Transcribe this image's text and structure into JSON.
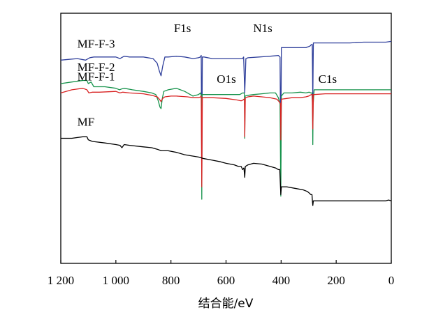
{
  "chart_data": {
    "type": "line",
    "title": "",
    "xlabel": "结合能/eV",
    "ylabel": "",
    "xlim": [
      1200,
      0
    ],
    "x_reversed": true,
    "x_ticks": [
      1200,
      1000,
      800,
      600,
      400,
      200,
      0
    ],
    "x_tick_labels": [
      "1 200",
      "1 000",
      "800",
      "600",
      "400",
      "200",
      "0"
    ],
    "y_ticks_shown": false,
    "grid": false,
    "peak_labels": [
      {
        "text": "F1s",
        "x": 688
      },
      {
        "text": "N1s",
        "x": 400
      },
      {
        "text": "O1s",
        "x": 532
      },
      {
        "text": "C1s",
        "x": 285
      }
    ],
    "series": [
      {
        "name": "MF-F-3",
        "color": "#2f3f9b",
        "points": [
          [
            1200,
            85
          ],
          [
            1170,
            85.5
          ],
          [
            1140,
            86
          ],
          [
            1110,
            85
          ],
          [
            1095,
            86.5
          ],
          [
            1080,
            87
          ],
          [
            1050,
            87
          ],
          [
            1000,
            87
          ],
          [
            985,
            86
          ],
          [
            970,
            87.5
          ],
          [
            950,
            87
          ],
          [
            900,
            87
          ],
          [
            865,
            86
          ],
          [
            850,
            83
          ],
          [
            842,
            78
          ],
          [
            836,
            75
          ],
          [
            830,
            81
          ],
          [
            822,
            87
          ],
          [
            810,
            87
          ],
          [
            780,
            87.5
          ],
          [
            750,
            87
          ],
          [
            720,
            86
          ],
          [
            700,
            86.5
          ],
          [
            693,
            87
          ],
          [
            690,
            88
          ],
          [
            688,
            15
          ],
          [
            686,
            87
          ],
          [
            680,
            87
          ],
          [
            650,
            86
          ],
          [
            600,
            86
          ],
          [
            560,
            86
          ],
          [
            540,
            86
          ],
          [
            536,
            87
          ],
          [
            532,
            64
          ],
          [
            528,
            86
          ],
          [
            520,
            86.5
          ],
          [
            480,
            87
          ],
          [
            440,
            87.5
          ],
          [
            410,
            88
          ],
          [
            404,
            87
          ],
          [
            401,
            19
          ],
          [
            399,
            93
          ],
          [
            380,
            93
          ],
          [
            340,
            93
          ],
          [
            310,
            93
          ],
          [
            295,
            94
          ],
          [
            290,
            95
          ],
          [
            287,
            95
          ],
          [
            285,
            60
          ],
          [
            283,
            96
          ],
          [
            280,
            96
          ],
          [
            240,
            96
          ],
          [
            200,
            96
          ],
          [
            150,
            96
          ],
          [
            100,
            96.5
          ],
          [
            50,
            96.5
          ],
          [
            20,
            96.5
          ],
          [
            0,
            97
          ]
        ]
      },
      {
        "name": "MF-F-2",
        "color": "#15924a",
        "points": [
          [
            1200,
            86
          ],
          [
            1160,
            87
          ],
          [
            1120,
            88
          ],
          [
            1105,
            88
          ],
          [
            1100,
            86
          ],
          [
            1090,
            87
          ],
          [
            1080,
            84
          ],
          [
            1040,
            84
          ],
          [
            1000,
            83
          ],
          [
            987,
            82
          ],
          [
            980,
            82.5
          ],
          [
            970,
            83
          ],
          [
            940,
            82
          ],
          [
            900,
            81
          ],
          [
            870,
            80
          ],
          [
            855,
            79
          ],
          [
            846,
            75
          ],
          [
            840,
            71
          ],
          [
            836,
            70
          ],
          [
            832,
            76
          ],
          [
            826,
            81
          ],
          [
            810,
            82
          ],
          [
            780,
            83
          ],
          [
            750,
            81
          ],
          [
            720,
            78
          ],
          [
            700,
            79
          ],
          [
            692,
            80
          ],
          [
            689,
            77
          ],
          [
            688,
            12
          ],
          [
            687,
            79
          ],
          [
            680,
            79
          ],
          [
            650,
            79
          ],
          [
            620,
            79
          ],
          [
            600,
            79
          ],
          [
            570,
            79
          ],
          [
            550,
            79
          ],
          [
            540,
            80
          ],
          [
            535,
            80
          ],
          [
            533,
            79
          ],
          [
            532,
            51
          ],
          [
            531,
            78
          ],
          [
            520,
            78.5
          ],
          [
            500,
            79
          ],
          [
            470,
            79.5
          ],
          [
            440,
            80
          ],
          [
            420,
            80
          ],
          [
            410,
            77
          ],
          [
            404,
            73
          ],
          [
            401,
            14
          ],
          [
            399,
            78
          ],
          [
            390,
            80
          ],
          [
            360,
            80
          ],
          [
            330,
            80.5
          ],
          [
            310,
            80
          ],
          [
            298,
            80.5
          ],
          [
            292,
            80
          ],
          [
            288,
            80
          ],
          [
            286,
            73
          ],
          [
            285,
            47
          ],
          [
            284,
            72
          ],
          [
            280,
            82
          ],
          [
            260,
            82
          ],
          [
            220,
            82
          ],
          [
            180,
            82
          ],
          [
            120,
            82
          ],
          [
            60,
            82
          ],
          [
            30,
            82
          ],
          [
            0,
            82
          ]
        ]
      },
      {
        "name": "MF-F-1",
        "color": "#d82222",
        "points": [
          [
            1200,
            90
          ],
          [
            1160,
            92
          ],
          [
            1120,
            93
          ],
          [
            1105,
            92
          ],
          [
            1098,
            90
          ],
          [
            1085,
            90.5
          ],
          [
            1060,
            90.5
          ],
          [
            1000,
            91
          ],
          [
            985,
            90
          ],
          [
            975,
            90.5
          ],
          [
            950,
            90
          ],
          [
            900,
            89.5
          ],
          [
            870,
            88.5
          ],
          [
            850,
            87.5
          ],
          [
            842,
            86
          ],
          [
            836,
            84.5
          ],
          [
            830,
            86.5
          ],
          [
            822,
            87.5
          ],
          [
            800,
            88
          ],
          [
            780,
            88
          ],
          [
            740,
            87.5
          ],
          [
            720,
            87
          ],
          [
            700,
            87
          ],
          [
            692,
            87.5
          ],
          [
            690,
            88
          ],
          [
            688,
            30
          ],
          [
            686,
            87
          ],
          [
            680,
            87
          ],
          [
            650,
            87
          ],
          [
            600,
            86.5
          ],
          [
            560,
            85.5
          ],
          [
            545,
            85
          ],
          [
            538,
            85.5
          ],
          [
            535,
            86
          ],
          [
            533,
            86
          ],
          [
            532,
            62
          ],
          [
            530,
            87
          ],
          [
            520,
            87.5
          ],
          [
            500,
            88
          ],
          [
            470,
            87.5
          ],
          [
            440,
            87
          ],
          [
            415,
            86
          ],
          [
            405,
            84
          ],
          [
            402,
            83
          ],
          [
            401,
            60
          ],
          [
            399,
            86
          ],
          [
            380,
            86.5
          ],
          [
            360,
            87
          ],
          [
            330,
            87
          ],
          [
            310,
            87.5
          ],
          [
            300,
            88
          ],
          [
            295,
            88.5
          ],
          [
            290,
            89
          ],
          [
            287,
            89
          ],
          [
            285,
            67
          ],
          [
            283,
            89
          ],
          [
            280,
            89
          ],
          [
            240,
            89.5
          ],
          [
            200,
            89.5
          ],
          [
            150,
            89.5
          ],
          [
            100,
            89.5
          ],
          [
            50,
            89.5
          ],
          [
            0,
            89.5
          ]
        ]
      },
      {
        "name": "MF",
        "color": "#000000",
        "points": [
          [
            1200,
            80
          ],
          [
            1160,
            80
          ],
          [
            1120,
            81
          ],
          [
            1105,
            81
          ],
          [
            1100,
            79
          ],
          [
            1085,
            78
          ],
          [
            1040,
            77
          ],
          [
            1000,
            76
          ],
          [
            985,
            75.5
          ],
          [
            978,
            74
          ],
          [
            970,
            76
          ],
          [
            950,
            75.5
          ],
          [
            900,
            74.5
          ],
          [
            870,
            74
          ],
          [
            850,
            73
          ],
          [
            835,
            72
          ],
          [
            810,
            72
          ],
          [
            780,
            71
          ],
          [
            750,
            69.5
          ],
          [
            700,
            68
          ],
          [
            680,
            67
          ],
          [
            650,
            66
          ],
          [
            620,
            65
          ],
          [
            600,
            64
          ],
          [
            570,
            63
          ],
          [
            555,
            62
          ],
          [
            545,
            62
          ],
          [
            540,
            60
          ],
          [
            535,
            61
          ],
          [
            532,
            55
          ],
          [
            530,
            62
          ],
          [
            520,
            63
          ],
          [
            500,
            64
          ],
          [
            470,
            63.5
          ],
          [
            440,
            62
          ],
          [
            420,
            61
          ],
          [
            410,
            60
          ],
          [
            405,
            60
          ],
          [
            401,
            44
          ],
          [
            399,
            49
          ],
          [
            380,
            49
          ],
          [
            350,
            48
          ],
          [
            320,
            47
          ],
          [
            305,
            46
          ],
          [
            298,
            45
          ],
          [
            292,
            44
          ],
          [
            288,
            44
          ],
          [
            286,
            39
          ],
          [
            285,
            37
          ],
          [
            283,
            40
          ],
          [
            280,
            40
          ],
          [
            240,
            40
          ],
          [
            200,
            40
          ],
          [
            150,
            40
          ],
          [
            100,
            40
          ],
          [
            50,
            40
          ],
          [
            20,
            40
          ],
          [
            10,
            40.5
          ],
          [
            0,
            40
          ]
        ]
      }
    ],
    "y_offsets": {
      "MF-F-3": 45,
      "MF-F-2": 29,
      "MF-F-1": 19,
      "MF": 0
    }
  }
}
